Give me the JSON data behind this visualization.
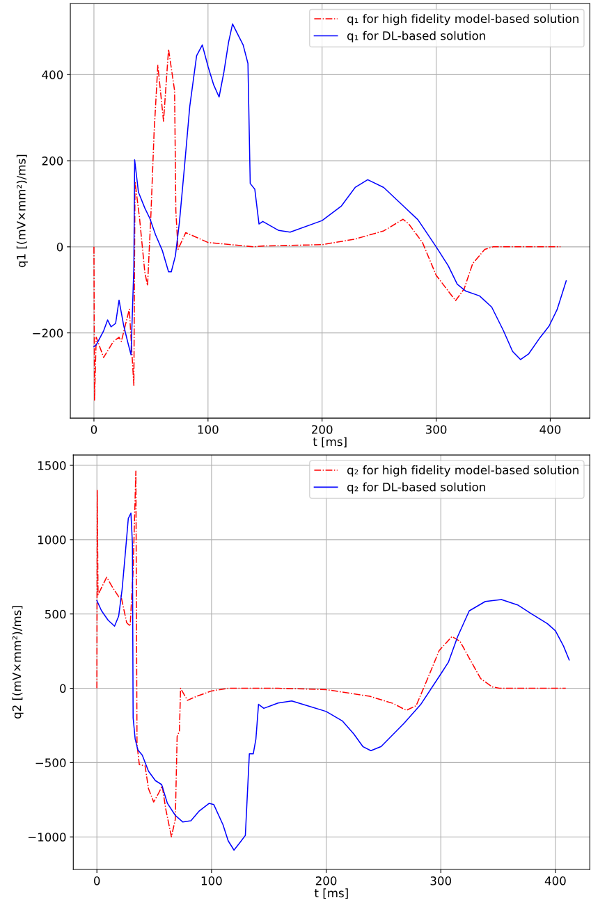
{
  "chart_data": [
    {
      "type": "line",
      "xlabel": "t [ms]",
      "ylabel": "q1 [(mV×mm²)/ms]",
      "xlim": [
        -20.7,
        434.7
      ],
      "ylim": [
        -398,
        565
      ],
      "xticks": [
        0,
        100,
        200,
        300,
        400
      ],
      "yticks": [
        {
          "value": -200,
          "label": "−200"
        },
        0,
        200,
        400
      ],
      "grid": true,
      "legend": "top right",
      "series": [
        {
          "name": "q₁ for high fidelity model-based solution",
          "color": "#ff0000",
          "line_style": "dashdot",
          "x": [
            0,
            0.5,
            2,
            8.5,
            17,
            22,
            24,
            31,
            35,
            36,
            40,
            44.6,
            47,
            50,
            52.7,
            56,
            61,
            65.4,
            70.7,
            71.8,
            73.7,
            80.5,
            100,
            140,
            149,
            200,
            229,
            254,
            271,
            276,
            288,
            300,
            310.6,
            317,
            324.5,
            332,
            342.6,
            350,
            409
          ],
          "values": [
            0,
            -356,
            -210,
            -257,
            -220,
            -210,
            -220,
            -145,
            -322,
            152,
            66,
            -59,
            -90,
            78,
            264,
            422,
            292,
            459,
            363,
            84,
            -6,
            33,
            10,
            0,
            2,
            5,
            18,
            37,
            64,
            53,
            10,
            -66,
            -103,
            -125,
            -98,
            -39,
            -6,
            0,
            0
          ]
        },
        {
          "name": "q₁ for DL-based solution",
          "color": "#0000ff",
          "line_style": "solid",
          "x": [
            0,
            2,
            8.5,
            12,
            15,
            19,
            22,
            26,
            29.5,
            32.5,
            35,
            35.7,
            39,
            44.6,
            49,
            54,
            60,
            65.4,
            67.8,
            71.4,
            75,
            79.5,
            84,
            90,
            95,
            100,
            105,
            109.7,
            114,
            118,
            121.5,
            126,
            130.8,
            135,
            137,
            141,
            144.7,
            148,
            162,
            172,
            200,
            217,
            229,
            240,
            254,
            270,
            284,
            300,
            310.6,
            318.5,
            326,
            338,
            348.7,
            359,
            367,
            374,
            381,
            391,
            399,
            406,
            414
          ],
          "values": [
            -232,
            -228,
            -195,
            -170,
            -186,
            -178,
            -124,
            -182,
            -220,
            -251,
            -46,
            202,
            127,
            90,
            66,
            28,
            -9,
            -58,
            -58,
            -21,
            59,
            190,
            326,
            444,
            469,
            419,
            376,
            348,
            407,
            475,
            518,
            494,
            469,
            426,
            147,
            134,
            53,
            59,
            38,
            34,
            61,
            95,
            138,
            156,
            138,
            98,
            63,
            0,
            -44,
            -87,
            -103,
            -114,
            -140,
            -195,
            -243,
            -262,
            -249,
            -211,
            -184,
            -146,
            -79
          ]
        }
      ]
    },
    {
      "type": "line",
      "xlabel": "t [ms]",
      "ylabel": "q2 [(mV×mm²)/ms]",
      "xlim": [
        -20.6,
        430
      ],
      "ylim": [
        -1219,
        1570
      ],
      "xticks": [
        0,
        100,
        200,
        300,
        400
      ],
      "yticks": [
        {
          "value": -1000,
          "label": "−1000"
        },
        {
          "value": -500,
          "label": "−500"
        },
        0,
        500,
        1000,
        1500
      ],
      "grid": true,
      "legend": "top right",
      "series": [
        {
          "name": "q₂ for high fidelity model-based solution",
          "color": "#ff0000",
          "line_style": "dashdot",
          "x": [
            0,
            0.3,
            1,
            8.5,
            14,
            19,
            21,
            26,
            29,
            31.6,
            34,
            35,
            37,
            42,
            45,
            49.5,
            53.5,
            57,
            60,
            65,
            68.4,
            70,
            72,
            73,
            79,
            87,
            100,
            114.5,
            158,
            200,
            238,
            258,
            270,
            278.5,
            288.5,
            298.6,
            309.7,
            316.7,
            326.8,
            334.8,
            345,
            351,
            409
          ],
          "values": [
            0,
            1332,
            630,
            747,
            675,
            616,
            621,
            441,
            418,
            792,
            1462,
            -378,
            -513,
            -522,
            -675,
            -765,
            -711,
            -657,
            -810,
            -999,
            -882,
            -324,
            -288,
            0,
            -81,
            -54,
            -18,
            0,
            0,
            -9,
            -54,
            -101,
            -148,
            -117,
            65,
            254,
            348,
            317,
            175,
            65,
            9,
            0,
            0
          ]
        },
        {
          "name": "q₂ for DL-based solution",
          "color": "#0000ff",
          "line_style": "solid",
          "x": [
            0,
            4,
            9.7,
            15.4,
            19,
            22,
            24.7,
            27.4,
            29.7,
            31,
            31.6,
            33.4,
            35.7,
            39.6,
            45,
            51,
            56.5,
            61.5,
            68.4,
            75,
            82,
            89,
            98,
            102,
            110,
            114.5,
            119.6,
            126,
            129.5,
            133,
            136.4,
            138.7,
            141,
            145.6,
            158,
            170,
            200,
            214,
            224,
            232,
            239,
            248,
            268,
            282.5,
            300,
            306.6,
            314.7,
            324.8,
            338.8,
            352.9,
            367,
            379,
            393,
            400,
            407,
            412
          ],
          "values": [
            590,
            522,
            459,
            418,
            486,
            666,
            900,
            1143,
            1179,
            972,
            -198,
            -342,
            -414,
            -450,
            -558,
            -621,
            -648,
            -774,
            -855,
            -900,
            -891,
            -828,
            -774,
            -783,
            -918,
            -1026,
            -1089,
            -1026,
            -990,
            -441,
            -441,
            -342,
            -108,
            -135,
            -99,
            -85,
            -156,
            -219,
            -306,
            -392,
            -420,
            -392,
            -235,
            -109,
            96,
            175,
            348,
            521,
            584,
            597,
            561,
            502,
            435,
            387,
            285,
            191
          ]
        }
      ]
    }
  ]
}
